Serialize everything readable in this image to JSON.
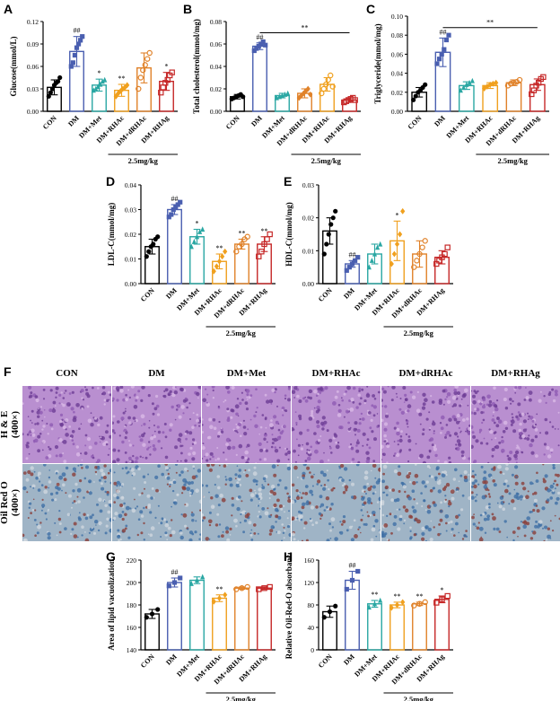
{
  "panel_labels": {
    "A": "A",
    "B": "B",
    "C": "C",
    "D": "D",
    "E": "E",
    "F": "F",
    "G": "G",
    "H": "H"
  },
  "colors": {
    "CON": "#000000",
    "DM": "#4a5fb0",
    "DM+Met": "#2aa7a3",
    "DM+RHAc": "#f0a01e",
    "DM+dRHAc": "#e0822a",
    "DM+RHAg": "#c62828"
  },
  "micro": {
    "columns": [
      "CON",
      "DM",
      "DM+Met",
      "DM+RHAc",
      "DM+dRHAc",
      "DM+RHAg"
    ],
    "rows": [
      "H & E\n(400×)",
      "Oil Red O\n(400×)"
    ],
    "row_lines": [
      [
        "H & E",
        "(400×)"
      ],
      [
        "Oil Red O",
        "(400×)"
      ]
    ]
  },
  "chart_data": [
    {
      "id": "A",
      "type": "bar",
      "ylabel": "Glucose(mmol/L)",
      "ylim": [
        0,
        0.12
      ],
      "yticks": [
        "0.00",
        "0.03",
        "0.06",
        "0.09",
        "0.12"
      ],
      "ytick_values": [
        0,
        0.03,
        0.06,
        0.09,
        0.12
      ],
      "categories": [
        "CON",
        "DM",
        "DM+Met",
        "DM+RHAc",
        "DM+dRHAc",
        "DM+RHAg"
      ],
      "values": [
        0.032,
        0.08,
        0.035,
        0.028,
        0.058,
        0.04
      ],
      "errors": [
        0.01,
        0.02,
        0.008,
        0.008,
        0.02,
        0.012
      ],
      "markers": [
        "circle",
        "square",
        "triangle",
        "diamond",
        "circle-open",
        "square-open"
      ],
      "points": [
        [
          0.02,
          0.025,
          0.03,
          0.035,
          0.038,
          0.04,
          0.045
        ],
        [
          0.06,
          0.065,
          0.075,
          0.085,
          0.09,
          0.095,
          0.1
        ],
        [
          0.028,
          0.03,
          0.033,
          0.036,
          0.04,
          0.042
        ],
        [
          0.02,
          0.024,
          0.027,
          0.03,
          0.032,
          0.035
        ],
        [
          0.03,
          0.045,
          0.055,
          0.062,
          0.07,
          0.078
        ],
        [
          0.025,
          0.032,
          0.038,
          0.042,
          0.048,
          0.052
        ]
      ],
      "sig": [
        "",
        "##",
        "*",
        "**",
        "",
        "*"
      ],
      "bracket_label": "2.5mg/kg",
      "bracket_from": 3,
      "bracket_to": 5,
      "top_line": null
    },
    {
      "id": "B",
      "type": "bar",
      "ylabel": "Total cholesterol(mmol/mg)",
      "ylim": [
        0,
        0.08
      ],
      "yticks": [
        "0.00",
        "0.02",
        "0.04",
        "0.06",
        "0.08"
      ],
      "ytick_values": [
        0,
        0.02,
        0.04,
        0.06,
        0.08
      ],
      "categories": [
        "CON",
        "DM",
        "DM+Met",
        "DM+dRHAc",
        "DM+RHAc",
        "DM+RHAg"
      ],
      "values": [
        0.013,
        0.058,
        0.014,
        0.016,
        0.024,
        0.01
      ],
      "errors": [
        0.002,
        0.003,
        0.002,
        0.004,
        0.006,
        0.002
      ],
      "markers": [
        "circle",
        "square",
        "triangle",
        "diamond",
        "circle-open",
        "square-open"
      ],
      "points": [
        [
          0.011,
          0.012,
          0.013,
          0.014,
          0.015,
          0.013
        ],
        [
          0.054,
          0.056,
          0.058,
          0.06,
          0.062,
          0.059
        ],
        [
          0.012,
          0.013,
          0.014,
          0.015,
          0.016
        ],
        [
          0.012,
          0.014,
          0.016,
          0.018,
          0.02,
          0.015
        ],
        [
          0.016,
          0.02,
          0.024,
          0.028,
          0.032,
          0.022
        ],
        [
          0.008,
          0.009,
          0.01,
          0.011,
          0.012,
          0.01
        ]
      ],
      "sig": [
        "",
        "##",
        "",
        "",
        "",
        ""
      ],
      "bracket_label": "2.5mg/kg",
      "bracket_from": 3,
      "bracket_to": 5,
      "top_line": {
        "label": "**",
        "from": 1,
        "to": 5,
        "y": 0.07
      }
    },
    {
      "id": "C",
      "type": "bar",
      "ylabel": "Triglyceride(mmol/mg)",
      "ylim": [
        0,
        0.1
      ],
      "yticks": [
        "0.00",
        "0.02",
        "0.04",
        "0.06",
        "0.08",
        "0.10"
      ],
      "ytick_values": [
        0,
        0.02,
        0.04,
        0.06,
        0.08,
        0.1
      ],
      "categories": [
        "CON",
        "DM",
        "DM+Met",
        "DM+RHAc",
        "DM+dRHAc",
        "DM+RHAg"
      ],
      "values": [
        0.02,
        0.062,
        0.027,
        0.027,
        0.03,
        0.028
      ],
      "errors": [
        0.005,
        0.015,
        0.004,
        0.003,
        0.003,
        0.006
      ],
      "markers": [
        "circle",
        "square",
        "triangle",
        "diamond",
        "circle-open",
        "square-open"
      ],
      "points": [
        [
          0.012,
          0.016,
          0.02,
          0.022,
          0.025,
          0.028
        ],
        [
          0.05,
          0.055,
          0.06,
          0.065,
          0.075,
          0.08
        ],
        [
          0.022,
          0.025,
          0.028,
          0.03,
          0.032
        ],
        [
          0.024,
          0.026,
          0.028,
          0.029,
          0.03
        ],
        [
          0.027,
          0.029,
          0.03,
          0.031,
          0.033
        ],
        [
          0.018,
          0.022,
          0.027,
          0.03,
          0.034,
          0.036
        ]
      ],
      "sig": [
        "",
        "##",
        "",
        "",
        "",
        ""
      ],
      "bracket_label": "2.5mg/kg",
      "bracket_from": 3,
      "bracket_to": 5,
      "top_line": {
        "label": "**",
        "from": 1,
        "to": 5,
        "y": 0.088
      }
    },
    {
      "id": "D",
      "type": "bar",
      "ylabel": "LDL-C(mmol/mg)",
      "ylim": [
        0,
        0.04
      ],
      "yticks": [
        "0.00",
        "0.01",
        "0.02",
        "0.03",
        "0.04"
      ],
      "ytick_values": [
        0,
        0.01,
        0.02,
        0.03,
        0.04
      ],
      "categories": [
        "CON",
        "DM",
        "DM+Met",
        "DM+RHAc",
        "DM+dRHAc",
        "DM+RHAg"
      ],
      "values": [
        0.015,
        0.03,
        0.019,
        0.009,
        0.016,
        0.016
      ],
      "errors": [
        0.003,
        0.002,
        0.003,
        0.003,
        0.002,
        0.003
      ],
      "markers": [
        "circle",
        "square",
        "triangle",
        "diamond",
        "circle-open",
        "square-open"
      ],
      "points": [
        [
          0.011,
          0.013,
          0.015,
          0.016,
          0.018,
          0.019
        ],
        [
          0.027,
          0.028,
          0.03,
          0.031,
          0.032,
          0.033
        ],
        [
          0.015,
          0.017,
          0.019,
          0.021,
          0.022
        ],
        [
          0.005,
          0.007,
          0.009,
          0.011,
          0.013
        ],
        [
          0.013,
          0.015,
          0.016,
          0.018,
          0.019
        ],
        [
          0.011,
          0.013,
          0.016,
          0.018,
          0.02
        ]
      ],
      "sig": [
        "",
        "##",
        "*",
        "**",
        "**",
        "**"
      ],
      "bracket_label": "2.5mg/kg",
      "bracket_from": 3,
      "bracket_to": 5,
      "top_line": null
    },
    {
      "id": "E",
      "type": "bar",
      "ylabel": "HDL-C(mmol/mg)",
      "ylim": [
        0,
        0.03
      ],
      "yticks": [
        "0.00",
        "0.01",
        "0.02",
        "0.03"
      ],
      "ytick_values": [
        0,
        0.01,
        0.02,
        0.03
      ],
      "categories": [
        "CON",
        "DM",
        "DM+Met",
        "DM+RHAc",
        "DM+dRHAc",
        "DM+RHAg"
      ],
      "values": [
        0.016,
        0.006,
        0.009,
        0.013,
        0.009,
        0.008
      ],
      "errors": [
        0.004,
        0.001,
        0.003,
        0.006,
        0.004,
        0.002
      ],
      "markers": [
        "circle",
        "square",
        "triangle",
        "diamond",
        "circle-open",
        "square-open"
      ],
      "points": [
        [
          0.009,
          0.012,
          0.015,
          0.018,
          0.02,
          0.022
        ],
        [
          0.004,
          0.005,
          0.006,
          0.007,
          0.008
        ],
        [
          0.005,
          0.007,
          0.009,
          0.011,
          0.012
        ],
        [
          0.006,
          0.009,
          0.012,
          0.015,
          0.022
        ],
        [
          0.005,
          0.007,
          0.009,
          0.011,
          0.013
        ],
        [
          0.006,
          0.007,
          0.008,
          0.009,
          0.011
        ]
      ],
      "sig": [
        "",
        "##",
        "",
        "*",
        "",
        ""
      ],
      "bracket_label": "2.5mg/kg",
      "bracket_from": 3,
      "bracket_to": 5,
      "top_line": null
    },
    {
      "id": "G",
      "type": "bar",
      "ylabel": "Area of lipid vacuolization",
      "ylim": [
        140,
        220
      ],
      "yticks": [
        "140",
        "160",
        "180",
        "200",
        "220"
      ],
      "ytick_values": [
        140,
        160,
        180,
        200,
        220
      ],
      "categories": [
        "CON",
        "DM",
        "DM+Met",
        "DM+RHAc",
        "DM+dRHAc",
        "DM+RHAg"
      ],
      "values": [
        172,
        200,
        202,
        186,
        195,
        195
      ],
      "errors": [
        4,
        4,
        3,
        3,
        1,
        1
      ],
      "markers": [
        "circle",
        "square",
        "triangle",
        "diamond",
        "circle-open",
        "square-open"
      ],
      "points": [
        [
          169,
          172,
          176
        ],
        [
          197,
          200,
          204
        ],
        [
          199,
          202,
          205
        ],
        [
          183,
          186,
          189
        ],
        [
          194,
          195,
          196
        ],
        [
          194,
          195,
          196
        ]
      ],
      "sig": [
        "",
        "##",
        "",
        "**",
        "",
        ""
      ],
      "bracket_label": "2.5mg/kg",
      "bracket_from": 3,
      "bracket_to": 5,
      "top_line": null
    },
    {
      "id": "H",
      "type": "bar",
      "ylabel": "Relative Oil-Red-O absorbance",
      "ylim": [
        0,
        160
      ],
      "yticks": [
        "0",
        "40",
        "80",
        "120",
        "160"
      ],
      "ytick_values": [
        0,
        40,
        80,
        120,
        160
      ],
      "categories": [
        "CON",
        "DM",
        "DM+Met",
        "DM+RHAc",
        "DM+dRHAc",
        "DM+RHAg"
      ],
      "values": [
        68,
        124,
        82,
        80,
        82,
        90
      ],
      "errors": [
        10,
        16,
        6,
        5,
        3,
        6
      ],
      "markers": [
        "circle",
        "square",
        "triangle",
        "diamond",
        "circle-open",
        "square-open"
      ],
      "points": [
        [
          58,
          68,
          78
        ],
        [
          108,
          124,
          140
        ],
        [
          76,
          82,
          88
        ],
        [
          75,
          80,
          85
        ],
        [
          79,
          82,
          85
        ],
        [
          84,
          90,
          96
        ]
      ],
      "sig": [
        "",
        "##",
        "**",
        "**",
        "**",
        "*"
      ],
      "bracket_label": "2.5mg/kg",
      "bracket_from": 3,
      "bracket_to": 5,
      "top_line": null
    }
  ]
}
